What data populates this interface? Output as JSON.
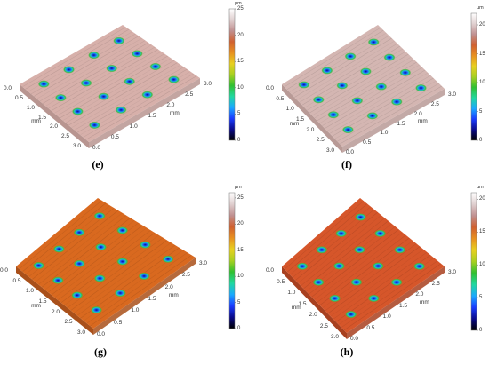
{
  "panels": [
    {
      "id": "e",
      "caption": "(e)",
      "unit": "µm",
      "colorbar_ticks": [
        "0",
        "5",
        "10",
        "15",
        "20",
        "25"
      ],
      "colorbar_max": 25,
      "axis_left_ticks": [
        "0.0",
        "0.5",
        "1.0",
        "1.5",
        "2.0",
        "2.5",
        "3.0"
      ],
      "axis_right_ticks": [
        "0.0",
        "0.5",
        "1.0",
        "1.5",
        "2.0",
        "2.5",
        "3.0"
      ],
      "axis_unit": "mm",
      "surface_color": "#d7b0aa",
      "surface_side": "#b89590"
    },
    {
      "id": "f",
      "caption": "(f)",
      "unit": "µm",
      "colorbar_ticks": [
        "0",
        "5",
        "10",
        "15",
        "20"
      ],
      "colorbar_max": 22,
      "axis_left_ticks": [
        "0.0",
        "0.5",
        "1.0",
        "1.5",
        "2.0",
        "2.5",
        "3.0"
      ],
      "axis_right_ticks": [
        "0.0",
        "0.5",
        "1.0",
        "1.5",
        "2.0",
        "2.5",
        "3.0"
      ],
      "axis_unit": "mm",
      "surface_color": "#d4b6b2",
      "surface_side": "#b89a96"
    },
    {
      "id": "g",
      "caption": "(g)",
      "unit": "µm",
      "colorbar_ticks": [
        "0",
        "5",
        "10",
        "15",
        "20",
        "25"
      ],
      "colorbar_max": 26,
      "axis_left_ticks": [
        "0.0",
        "0.5",
        "1.0",
        "1.5",
        "2.0",
        "2.5",
        "3.0"
      ],
      "axis_right_ticks": [
        "0.0",
        "0.5",
        "1.0",
        "1.5",
        "2.0",
        "2.5",
        "3.0"
      ],
      "axis_unit": "mm",
      "surface_color": "#d9691f",
      "surface_side": "#a9501a"
    },
    {
      "id": "h",
      "caption": "(h)",
      "unit": "µm",
      "colorbar_ticks": [
        "0",
        "5",
        "10",
        "15",
        "20"
      ],
      "colorbar_max": 21,
      "axis_left_ticks": [
        "0.0",
        "0.5",
        "1.0",
        "1.5",
        "2.0",
        "2.5",
        "3.0"
      ],
      "axis_right_ticks": [
        "0.0",
        "0.5",
        "1.0",
        "1.5",
        "2.0",
        "2.5",
        "3.0"
      ],
      "axis_unit": "mm",
      "surface_color": "#d6562a",
      "surface_side": "#a8401f"
    }
  ]
}
